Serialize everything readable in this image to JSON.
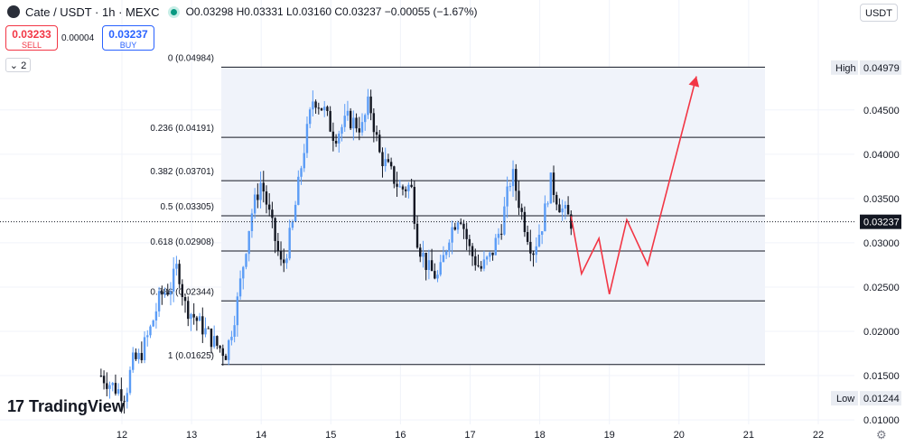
{
  "header": {
    "symbol": "Cate / USDT · 1h · MEXC",
    "ohlc": "O0.03298 H0.03331 L0.03160 C0.03237 −0.00055 (−1.67%)"
  },
  "trade": {
    "sell_price": "0.03233",
    "sell_label": "SELL",
    "spread": "0.00004",
    "buy_price": "0.03237",
    "buy_label": "BUY"
  },
  "indicators_toggle": "2",
  "currency_button": "USDT",
  "brand": "TradingView",
  "colors": {
    "up": "#5b9cf6",
    "down": "#131722",
    "fib_line": "#131722",
    "arrow": "#f23645",
    "band": "#f0f3fa"
  },
  "chart_data": {
    "type": "candlestick",
    "x_ticks": [
      "12",
      "13",
      "14",
      "15",
      "16",
      "17",
      "18",
      "19",
      "20",
      "21",
      "22"
    ],
    "y_ticks": [
      "0.04500",
      "0.04000",
      "0.03500",
      "0.03000",
      "0.02500",
      "0.02000",
      "0.01500",
      "0.01000"
    ],
    "ylim": [
      0.0095,
      0.0513
    ],
    "price_labels": {
      "high_label": "High",
      "high_value": "0.04979",
      "low_label": "Low",
      "low_value": "0.01244",
      "last_value": "0.03237"
    },
    "fib_levels": [
      {
        "level": "0",
        "price": 0.04984,
        "label": "0 (0.04984)"
      },
      {
        "level": "0.236",
        "price": 0.04191,
        "label": "0.236 (0.04191)"
      },
      {
        "level": "0.382",
        "price": 0.03701,
        "label": "0.382 (0.03701)"
      },
      {
        "level": "0.5",
        "price": 0.03305,
        "label": "0.5 (0.03305)"
      },
      {
        "level": "0.618",
        "price": 0.02908,
        "label": "0.618 (0.02908)"
      },
      {
        "level": "0.786",
        "price": 0.02344,
        "label": "0.786 (0.02344)"
      },
      {
        "level": "1",
        "price": 0.01625,
        "label": "1 (0.01625)"
      }
    ],
    "price_path": [
      [
        11.7,
        0.015
      ],
      [
        11.9,
        0.0136
      ],
      [
        12.05,
        0.0128
      ],
      [
        12.15,
        0.0165
      ],
      [
        12.25,
        0.017
      ],
      [
        12.4,
        0.02
      ],
      [
        12.55,
        0.024
      ],
      [
        12.7,
        0.025
      ],
      [
        12.8,
        0.0275
      ],
      [
        12.9,
        0.023
      ],
      [
        13.05,
        0.0215
      ],
      [
        13.2,
        0.02
      ],
      [
        13.35,
        0.0185
      ],
      [
        13.5,
        0.0175
      ],
      [
        13.65,
        0.023
      ],
      [
        13.85,
        0.033
      ],
      [
        14.0,
        0.037
      ],
      [
        14.15,
        0.032
      ],
      [
        14.3,
        0.027
      ],
      [
        14.45,
        0.032
      ],
      [
        14.6,
        0.04
      ],
      [
        14.75,
        0.0465
      ],
      [
        14.9,
        0.045
      ],
      [
        15.05,
        0.042
      ],
      [
        15.25,
        0.044
      ],
      [
        15.45,
        0.043
      ],
      [
        15.55,
        0.046
      ],
      [
        15.7,
        0.04
      ],
      [
        15.85,
        0.038
      ],
      [
        16.0,
        0.036
      ],
      [
        16.15,
        0.0365
      ],
      [
        16.25,
        0.03
      ],
      [
        16.4,
        0.027
      ],
      [
        16.55,
        0.026
      ],
      [
        16.7,
        0.031
      ],
      [
        16.85,
        0.0335
      ],
      [
        17.0,
        0.029
      ],
      [
        17.15,
        0.027
      ],
      [
        17.3,
        0.0285
      ],
      [
        17.45,
        0.032
      ],
      [
        17.6,
        0.038
      ],
      [
        17.75,
        0.033
      ],
      [
        17.9,
        0.029
      ],
      [
        18.05,
        0.0325
      ],
      [
        18.15,
        0.037
      ],
      [
        18.3,
        0.034
      ],
      [
        18.45,
        0.0324
      ]
    ],
    "projection": [
      [
        18.45,
        0.033
      ],
      [
        18.6,
        0.0265
      ],
      [
        18.85,
        0.0305
      ],
      [
        19.0,
        0.0242
      ],
      [
        19.25,
        0.0326
      ],
      [
        19.55,
        0.0275
      ],
      [
        20.25,
        0.0488
      ]
    ]
  }
}
